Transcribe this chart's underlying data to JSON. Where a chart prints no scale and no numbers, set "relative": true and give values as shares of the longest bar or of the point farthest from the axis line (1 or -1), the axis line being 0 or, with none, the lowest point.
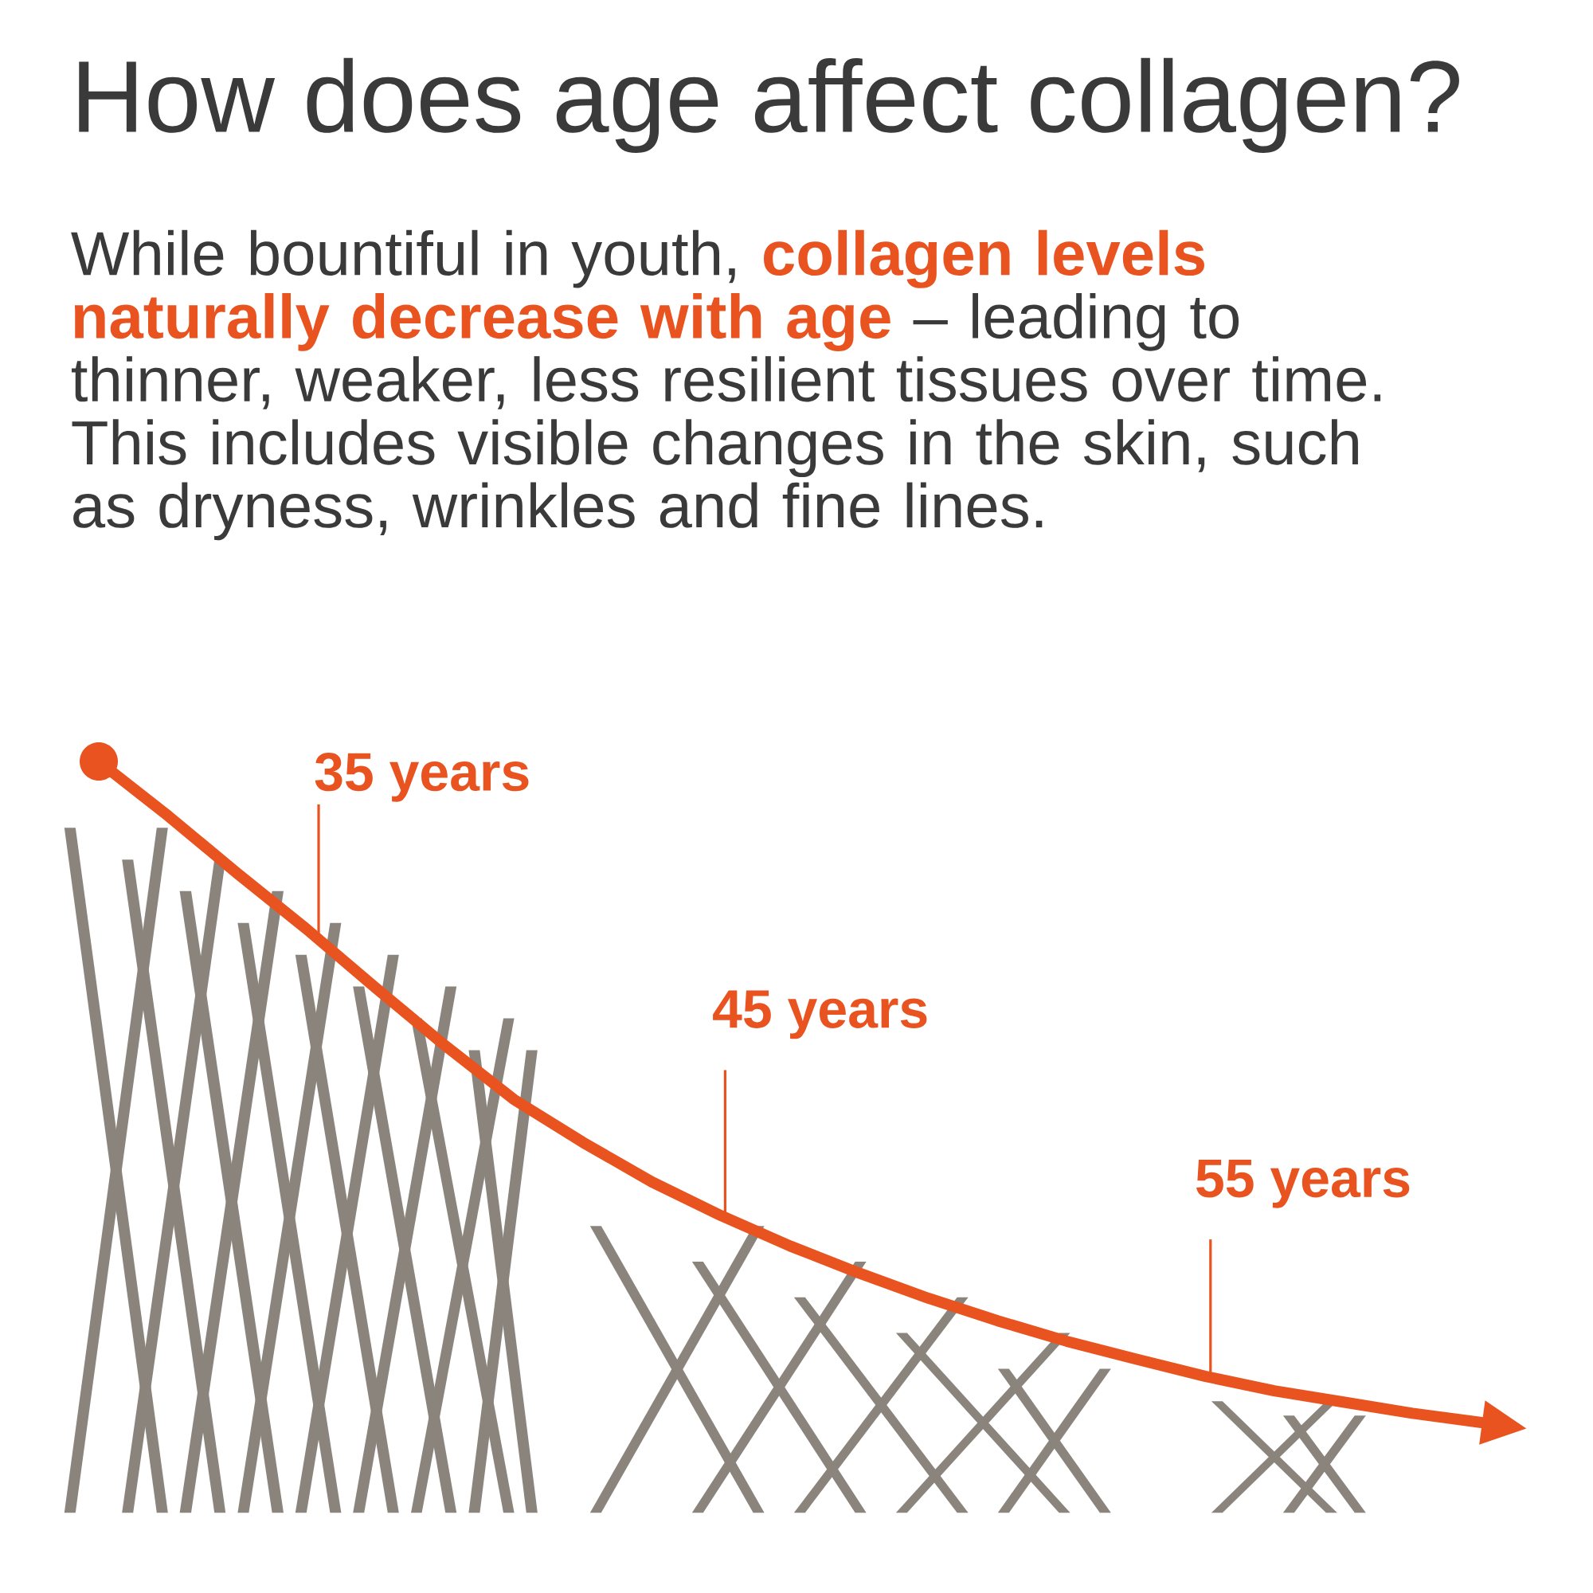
{
  "chart_data": {
    "type": "line",
    "title": "How does age affect collagen?",
    "subtitle": "While bountiful in youth, **collagen levels naturally decrease with age** – leading to thinner, weaker, less resilient tissues over time. This includes visible changes in the skin, such as dryness, wrinkles and fine lines.",
    "categories": [
      null,
      null,
      null,
      null,
      null,
      null,
      null,
      null,
      null,
      null,
      null,
      null,
      null,
      null,
      null,
      null,
      null,
      null,
      null,
      null,
      null
    ],
    "values": [
      1,
      0.918,
      0.831,
      0.747,
      0.658,
      0.571,
      0.489,
      0.424,
      0.364,
      0.313,
      0.267,
      0.226,
      0.188,
      0.154,
      0.123,
      0.096,
      0.07,
      0.048,
      0.031,
      0.014,
      0
    ],
    "relative": true,
    "color": "#e8531f",
    "annotations": [
      "35 years",
      "45 years",
      "55 years"
    ]
  }
}
